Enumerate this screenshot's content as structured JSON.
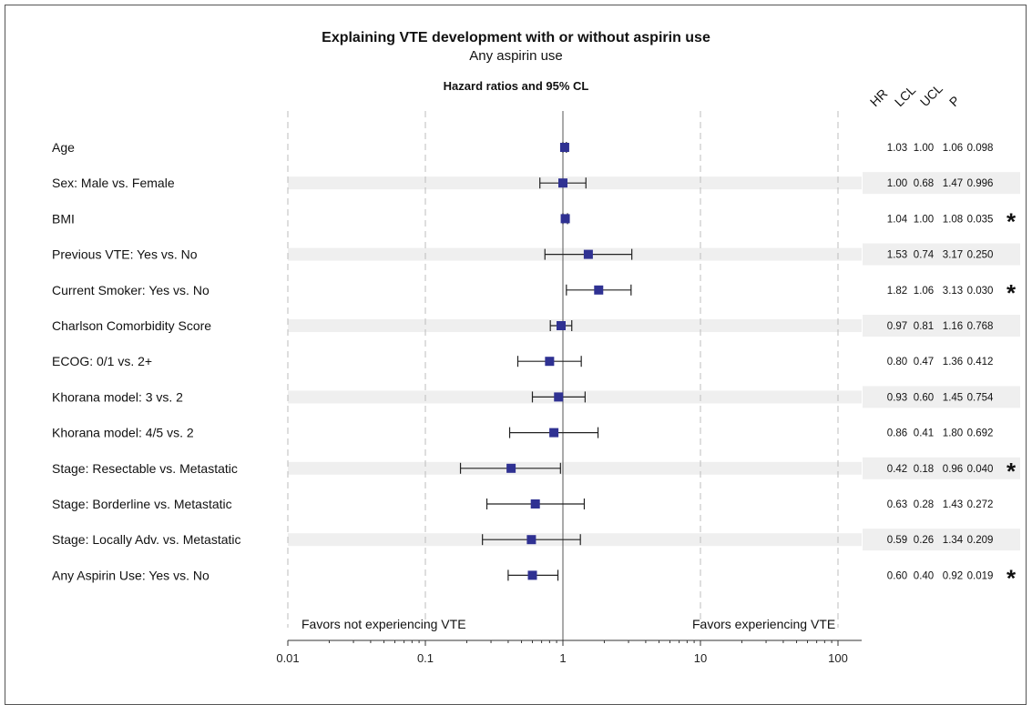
{
  "chart_data": {
    "type": "scatter",
    "title": "Explaining VTE development with or without aspirin use",
    "subtitle": "Any aspirin use",
    "plot_title": "Hazard ratios and 95% CL",
    "x_scale": "log",
    "xlim": [
      0.01,
      100
    ],
    "x_ticks": [
      "0.01",
      "0.1",
      "1",
      "10",
      "100"
    ],
    "grid": "dashed vertical at decades",
    "reference_line": 1,
    "favors_left": "Favors not experiencing VTE",
    "favors_right": "Favors experiencing VTE",
    "column_headers": [
      "HR",
      "LCL",
      "UCL",
      "P"
    ],
    "significance_marker": "*",
    "rows": [
      {
        "label": "Age",
        "hr": 1.03,
        "lcl": 1.0,
        "ucl": 1.06,
        "p": "0.098",
        "hr_text": "1.03",
        "lcl_text": "1.00",
        "ucl_text": "1.06",
        "sig": false
      },
      {
        "label": "Sex: Male vs. Female",
        "hr": 1.0,
        "lcl": 0.68,
        "ucl": 1.47,
        "p": "0.996",
        "hr_text": "1.00",
        "lcl_text": "0.68",
        "ucl_text": "1.47",
        "sig": false
      },
      {
        "label": "BMI",
        "hr": 1.04,
        "lcl": 1.0,
        "ucl": 1.08,
        "p": "0.035",
        "hr_text": "1.04",
        "lcl_text": "1.00",
        "ucl_text": "1.08",
        "sig": true
      },
      {
        "label": "Previous VTE: Yes vs. No",
        "hr": 1.53,
        "lcl": 0.74,
        "ucl": 3.17,
        "p": "0.250",
        "hr_text": "1.53",
        "lcl_text": "0.74",
        "ucl_text": "3.17",
        "sig": false
      },
      {
        "label": "Current Smoker: Yes vs. No",
        "hr": 1.82,
        "lcl": 1.06,
        "ucl": 3.13,
        "p": "0.030",
        "hr_text": "1.82",
        "lcl_text": "1.06",
        "ucl_text": "3.13",
        "sig": true
      },
      {
        "label": "Charlson Comorbidity Score",
        "hr": 0.97,
        "lcl": 0.81,
        "ucl": 1.16,
        "p": "0.768",
        "hr_text": "0.97",
        "lcl_text": "0.81",
        "ucl_text": "1.16",
        "sig": false
      },
      {
        "label": "ECOG: 0/1 vs. 2+",
        "hr": 0.8,
        "lcl": 0.47,
        "ucl": 1.36,
        "p": "0.412",
        "hr_text": "0.80",
        "lcl_text": "0.47",
        "ucl_text": "1.36",
        "sig": false
      },
      {
        "label": "Khorana model: 3 vs. 2",
        "hr": 0.93,
        "lcl": 0.6,
        "ucl": 1.45,
        "p": "0.754",
        "hr_text": "0.93",
        "lcl_text": "0.60",
        "ucl_text": "1.45",
        "sig": false
      },
      {
        "label": "Khorana model: 4/5 vs. 2",
        "hr": 0.86,
        "lcl": 0.41,
        "ucl": 1.8,
        "p": "0.692",
        "hr_text": "0.86",
        "lcl_text": "0.41",
        "ucl_text": "1.80",
        "sig": false
      },
      {
        "label": "Stage: Resectable vs. Metastatic",
        "hr": 0.42,
        "lcl": 0.18,
        "ucl": 0.96,
        "p": "0.040",
        "hr_text": "0.42",
        "lcl_text": "0.18",
        "ucl_text": "0.96",
        "sig": true
      },
      {
        "label": "Stage: Borderline vs. Metastatic",
        "hr": 0.63,
        "lcl": 0.28,
        "ucl": 1.43,
        "p": "0.272",
        "hr_text": "0.63",
        "lcl_text": "0.28",
        "ucl_text": "1.43",
        "sig": false
      },
      {
        "label": "Stage: Locally Adv. vs. Metastatic",
        "hr": 0.59,
        "lcl": 0.26,
        "ucl": 1.34,
        "p": "0.209",
        "hr_text": "0.59",
        "lcl_text": "0.26",
        "ucl_text": "1.34",
        "sig": false
      },
      {
        "label": "Any Aspirin Use: Yes vs. No",
        "hr": 0.6,
        "lcl": 0.4,
        "ucl": 0.92,
        "p": "0.019",
        "hr_text": "0.60",
        "lcl_text": "0.40",
        "ucl_text": "0.92",
        "sig": true
      }
    ],
    "colors": {
      "marker": "#2f3192",
      "band": "#efefef",
      "grid": "#bdbdbd",
      "axis": "#333333"
    }
  }
}
